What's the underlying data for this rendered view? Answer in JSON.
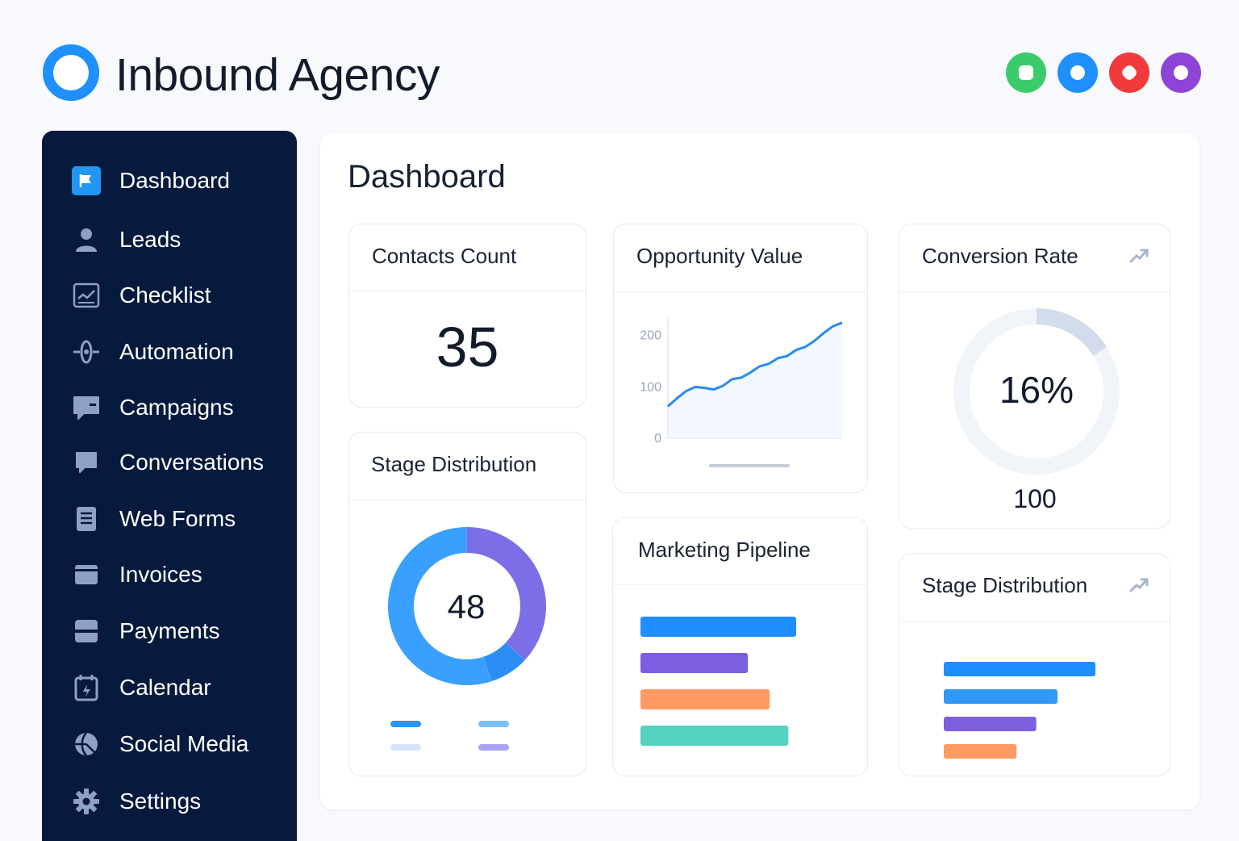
{
  "app": {
    "title": "Inbound Agency"
  },
  "header": {
    "status_dots": [
      {
        "name": "green",
        "color": "#3ccb6b"
      },
      {
        "name": "blue",
        "color": "#1e90ff"
      },
      {
        "name": "red",
        "color": "#f23a3a"
      },
      {
        "name": "purple",
        "color": "#8e44d6"
      }
    ]
  },
  "sidebar": {
    "items": [
      {
        "label": "Dashboard",
        "icon": "flag-icon",
        "active": true
      },
      {
        "label": "Leads",
        "icon": "person-icon"
      },
      {
        "label": "Checklist",
        "icon": "chart-icon"
      },
      {
        "label": "Automation",
        "icon": "automation-icon"
      },
      {
        "label": "Campaigns",
        "icon": "chat-icon"
      },
      {
        "label": "Conversations",
        "icon": "conversation-icon"
      },
      {
        "label": "Web Forms",
        "icon": "form-icon"
      },
      {
        "label": "Invoices",
        "icon": "invoice-icon"
      },
      {
        "label": "Payments",
        "icon": "card-icon"
      },
      {
        "label": "Calendar",
        "icon": "calendar-icon"
      },
      {
        "label": "Social Media",
        "icon": "globe-icon"
      },
      {
        "label": "Settings",
        "icon": "gear-icon"
      }
    ]
  },
  "main": {
    "title": "Dashboard",
    "contacts": {
      "title": "Contacts Count",
      "value": "35"
    },
    "opportunity": {
      "title": "Opportunity Value",
      "y_ticks": [
        "200",
        "100",
        "0"
      ]
    },
    "conversion": {
      "title": "Conversion Rate",
      "value": "16%",
      "footer": "100",
      "progress": 0.16
    },
    "stage_distribution": {
      "title": "Stage Distribution",
      "center": "48"
    },
    "pipeline": {
      "title": "Marketing Pipeline"
    },
    "stage_distribution_2": {
      "title": "Stage Distribution"
    }
  },
  "chart_data": [
    {
      "type": "line",
      "title": "Opportunity Value",
      "x": [
        0,
        1,
        2,
        3,
        4,
        5,
        6,
        7,
        8,
        9,
        10,
        11,
        12,
        13,
        14,
        15,
        16,
        17,
        18,
        19
      ],
      "y": [
        62,
        78,
        92,
        100,
        98,
        95,
        102,
        115,
        118,
        128,
        140,
        145,
        156,
        160,
        172,
        178,
        190,
        205,
        218,
        225
      ],
      "ylim": [
        0,
        220
      ],
      "y_ticks": [
        0,
        100,
        200
      ],
      "color": "#2b8af0",
      "grid": false
    },
    {
      "type": "pie",
      "title": "Stage Distribution",
      "center_label": "48",
      "slices": [
        {
          "value": 37,
          "color": "#7b6ee6"
        },
        {
          "value": 8,
          "color": "#2b8ef5"
        },
        {
          "value": 55,
          "color": "#3aa0ff"
        }
      ],
      "legend_colors": [
        "#2b95f0",
        "#7ac0f5",
        "#d6e6fa",
        "#a9a4f2"
      ]
    },
    {
      "type": "bar",
      "title": "Marketing Pipeline",
      "orientation": "horizontal",
      "values": [
        100,
        69,
        83,
        95
      ],
      "colors": [
        "#1f8fff",
        "#7b5fe0",
        "#ff9a62",
        "#54d3c2"
      ]
    },
    {
      "type": "bar",
      "title": "Stage Distribution",
      "orientation": "horizontal",
      "values": [
        100,
        75,
        61,
        48
      ],
      "colors": [
        "#1f8fff",
        "#2e9af5",
        "#7b5fe0",
        "#ff9a62"
      ]
    }
  ]
}
